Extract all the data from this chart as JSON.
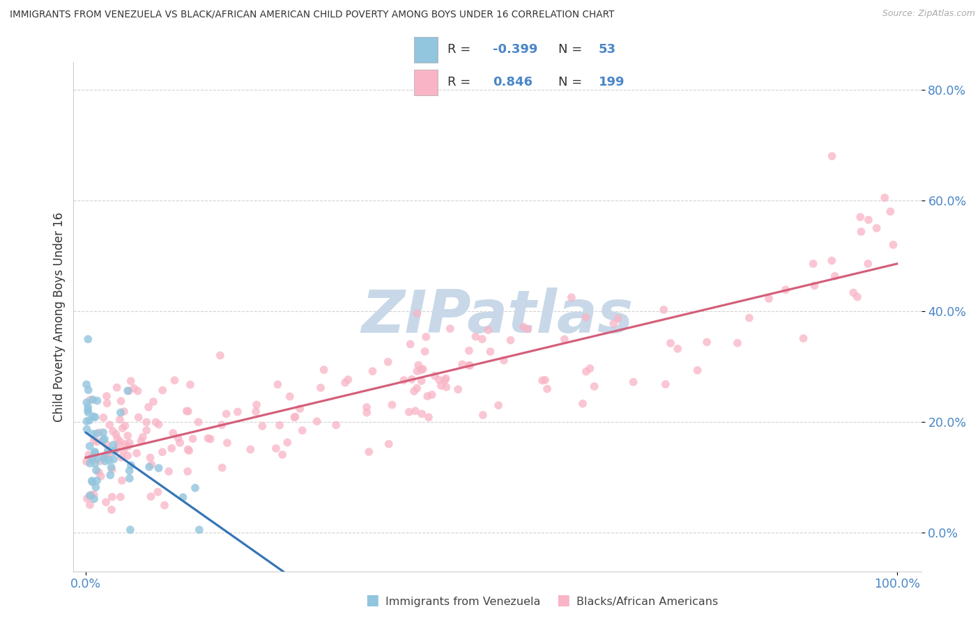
{
  "title": "IMMIGRANTS FROM VENEZUELA VS BLACK/AFRICAN AMERICAN CHILD POVERTY AMONG BOYS UNDER 16 CORRELATION CHART",
  "source": "Source: ZipAtlas.com",
  "ylabel": "Child Poverty Among Boys Under 16",
  "blue_R": -0.399,
  "blue_N": 53,
  "pink_R": 0.846,
  "pink_N": 199,
  "blue_color": "#92c5de",
  "pink_color": "#f9b4c5",
  "blue_line_color": "#3575b5",
  "pink_line_color": "#d45f7a",
  "watermark_color": "#c8d8e8",
  "grid_color": "#cccccc",
  "tick_label_color": "#4a86c8",
  "title_color": "#333333",
  "axis_label_color": "#333333",
  "legend_label_blue": "Immigrants from Venezuela",
  "legend_label_pink": "Blacks/African Americans",
  "yticks": [
    0.0,
    0.2,
    0.4,
    0.6,
    0.8
  ],
  "ytick_labels": [
    "0.0%",
    "20.0%",
    "40.0%",
    "60.0%",
    "80.0%"
  ],
  "xlim_min": -0.015,
  "xlim_max": 1.03,
  "ylim_min": -0.07,
  "ylim_max": 0.85
}
